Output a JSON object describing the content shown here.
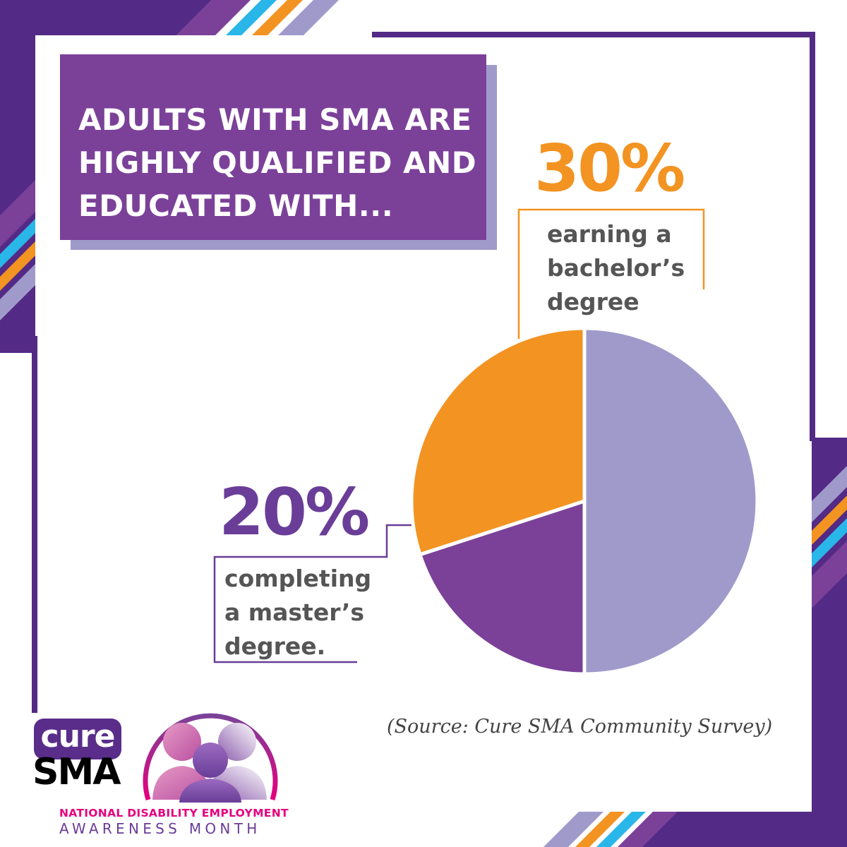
{
  "headline": {
    "lines": [
      "ADULTS WITH SMA ARE",
      "HIGHLY QUALIFIED AND",
      "EDUCATED WITH..."
    ]
  },
  "callouts": {
    "bachelor": {
      "percent": "30%",
      "lines": [
        "earning a",
        "bachelor’s",
        "degree"
      ]
    },
    "master": {
      "percent": "20%",
      "lines": [
        "completing",
        "a master’s",
        "degree."
      ]
    }
  },
  "source": "(Source: Cure SMA Community Survey)",
  "logo": {
    "cure": "cure",
    "sma": "SMA"
  },
  "ndeam": {
    "line1": "NATIONAL DISABILITY EMPLOYMENT",
    "line2": "AWARENESS MONTH"
  },
  "colors": {
    "purple": "#7b4199",
    "dark_purple": "#532a85",
    "lavender": "#a09acb",
    "orange": "#f39321",
    "cyan": "#29b6e8",
    "magenta": "#e5007e"
  },
  "chart_data": {
    "type": "pie",
    "title": "",
    "slices": [
      {
        "label": "earning a bachelor’s degree",
        "value": 30,
        "color": "#f39321"
      },
      {
        "label": "completing a master’s degree.",
        "value": 20,
        "color": "#7b4199"
      },
      {
        "label": "",
        "value": 50,
        "color": "#a09acb"
      }
    ],
    "legend": "none"
  }
}
